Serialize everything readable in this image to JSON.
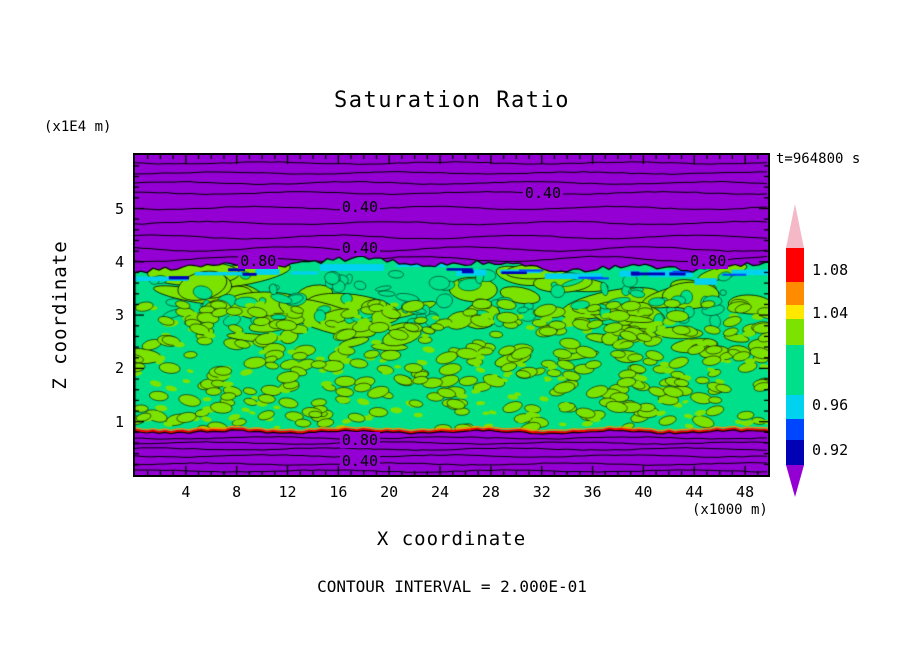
{
  "time_label": "t=964800 s",
  "footer": "CONTOUR INTERVAL = 2.000E-01",
  "chart_data": {
    "type": "contour",
    "title": "Saturation Ratio",
    "xlabel": "X coordinate",
    "ylabel": "Z coordinate",
    "x_unit": "(x1000 m)",
    "y_unit": "(x1E4 m)",
    "x_ticks": [
      4,
      8,
      12,
      16,
      20,
      24,
      28,
      32,
      36,
      40,
      44,
      48
    ],
    "y_ticks": [
      1,
      2,
      3,
      4,
      5
    ],
    "x_range": [
      0,
      49.8
    ],
    "y_range": [
      0,
      6
    ],
    "time_seconds": 964800,
    "contour_interval": "2.000E-01",
    "contour_labels": [
      {
        "text": "0.40",
        "x": 17.7,
        "z": 5.03
      },
      {
        "text": "0.40",
        "x": 32.1,
        "z": 5.3
      },
      {
        "text": "0.40",
        "x": 17.7,
        "z": 4.26
      },
      {
        "text": "0.80",
        "x": 9.7,
        "z": 4.02
      },
      {
        "text": "0.80",
        "x": 45.1,
        "z": 4.02
      },
      {
        "text": "0.80",
        "x": 17.7,
        "z": 0.66
      },
      {
        "text": "0.40",
        "x": 17.7,
        "z": 0.26
      }
    ],
    "regions": [
      {
        "name": "upper-subsaturated-layer",
        "z_range": [
          4.0,
          6.0
        ],
        "value_range": [
          0.0,
          0.8
        ],
        "color": "#9400D3",
        "note": "stratified horizontal contour lines, 0.40 contours labeled"
      },
      {
        "name": "band-top-stripe",
        "z_range": [
          3.75,
          3.95
        ],
        "value_range": [
          0.88,
          0.96
        ],
        "colors": [
          "#00D2F0",
          "#0046FF",
          "#0000B4"
        ]
      },
      {
        "name": "saturated-band",
        "z_range": [
          0.8,
          3.95
        ],
        "value_range": [
          0.96,
          1.04
        ],
        "colors": [
          "#00E08A",
          "#7CE300"
        ],
        "note": "mottled field near saturation ratio 1"
      },
      {
        "name": "band-bottom-line",
        "z_range": [
          0.75,
          0.82
        ],
        "value_range": [
          1.04,
          1.12
        ],
        "colors": [
          "#FF0000",
          "#FF8C00"
        ]
      },
      {
        "name": "lower-subsaturated-layer",
        "z_range": [
          0.0,
          0.75
        ],
        "value_range": [
          0.0,
          0.8
        ],
        "color": "#9400D3",
        "note": "0.80 and 0.40 contours labeled"
      }
    ],
    "colorbar": {
      "tick_labels": [
        "1.08",
        "1.04",
        "1",
        "0.96",
        "0.92"
      ],
      "segments_top_to_bottom": [
        {
          "name": "pink-arrow",
          "color": "#F4B8C6",
          "shape": "arrow-up"
        },
        {
          "name": "red",
          "color": "#FF0000"
        },
        {
          "name": "orange",
          "color": "#FF8C00"
        },
        {
          "name": "yellow",
          "color": "#FFE700"
        },
        {
          "name": "green-yellow",
          "color": "#7CE300"
        },
        {
          "name": "spring-green",
          "color": "#00E08A"
        },
        {
          "name": "cyan",
          "color": "#00D2F0"
        },
        {
          "name": "blue",
          "color": "#0046FF"
        },
        {
          "name": "navy",
          "color": "#0000B4"
        },
        {
          "name": "purple-arrow",
          "color": "#9400D3",
          "shape": "arrow-down"
        }
      ]
    },
    "palette": {
      "purple": "#9400D3",
      "spring_green": "#00E08A",
      "green_yellow": "#7CE300",
      "cyan": "#00D2F0",
      "blue": "#0046FF",
      "navy": "#0000B4",
      "red": "#FF0000",
      "orange": "#FF8C00",
      "yellow": "#FFE700",
      "pink": "#F4B8C6",
      "line": "#000000"
    }
  }
}
